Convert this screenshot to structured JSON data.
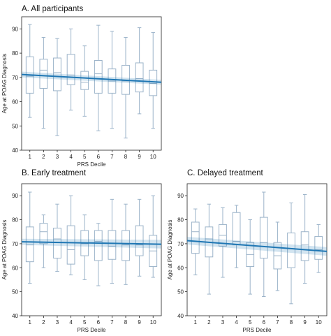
{
  "chart_data": [
    {
      "type": "box",
      "title": "A. All participants",
      "xlabel": "PRS Decile",
      "ylabel": "Age at POAG Diagnosis",
      "categories": [
        "1",
        "2",
        "3",
        "4",
        "5",
        "6",
        "7",
        "8",
        "9",
        "10"
      ],
      "ylim": [
        40,
        95
      ],
      "yticks": [
        40,
        50,
        60,
        70,
        80,
        90
      ],
      "grid": false,
      "box_color": "#9bb3c9",
      "trend_color": "#1f77b4",
      "boxes": [
        {
          "min": 53.5,
          "q1": 63.5,
          "median": 70.5,
          "q3": 78.5,
          "max": 91.8
        },
        {
          "min": 49.0,
          "q1": 65.5,
          "median": 73.0,
          "q3": 77.5,
          "max": 86.5
        },
        {
          "min": 46.0,
          "q1": 64.5,
          "median": 72.0,
          "q3": 78.0,
          "max": 86.0
        },
        {
          "min": 56.5,
          "q1": 67.0,
          "median": 71.0,
          "q3": 79.5,
          "max": 90.0
        },
        {
          "min": 54.0,
          "q1": 65.0,
          "median": 68.0,
          "q3": 72.5,
          "max": 83.0
        },
        {
          "min": 48.0,
          "q1": 63.5,
          "median": 71.5,
          "q3": 77.0,
          "max": 91.5
        },
        {
          "min": 49.0,
          "q1": 63.5,
          "median": 68.5,
          "q3": 73.5,
          "max": 89.0
        },
        {
          "min": 45.0,
          "q1": 63.0,
          "median": 68.5,
          "q3": 75.0,
          "max": 86.5
        },
        {
          "min": 55.0,
          "q1": 64.0,
          "median": 69.5,
          "q3": 76.0,
          "max": 90.5
        },
        {
          "min": 49.0,
          "q1": 62.5,
          "median": 67.5,
          "q3": 73.0,
          "max": 88.5
        }
      ],
      "trend": {
        "start": 71.2,
        "end": 68.0,
        "ci_start": 1.2,
        "ci_end": 1.0
      }
    },
    {
      "type": "box",
      "title": "B. Early treatment",
      "xlabel": "PRS Decile",
      "ylabel": "Age at POAG Diagnosis",
      "categories": [
        "1",
        "2",
        "3",
        "4",
        "5",
        "6",
        "7",
        "8",
        "9",
        "10"
      ],
      "ylim": [
        40,
        95
      ],
      "yticks": [
        40,
        50,
        60,
        70,
        80,
        90
      ],
      "grid": false,
      "box_color": "#9bb3c9",
      "trend_color": "#1f77b4",
      "boxes": [
        {
          "min": 53.5,
          "q1": 62.5,
          "median": 69.5,
          "q3": 77.0,
          "max": 91.5
        },
        {
          "min": 60.0,
          "q1": 70.0,
          "median": 75.0,
          "q3": 78.5,
          "max": 82.0
        },
        {
          "min": 58.5,
          "q1": 64.0,
          "median": 72.0,
          "q3": 76.5,
          "max": 86.5
        },
        {
          "min": 57.0,
          "q1": 61.5,
          "median": 67.5,
          "q3": 77.5,
          "max": 90.0
        },
        {
          "min": 55.0,
          "q1": 65.0,
          "median": 70.0,
          "q3": 75.5,
          "max": 82.0
        },
        {
          "min": 52.5,
          "q1": 63.0,
          "median": 71.0,
          "q3": 75.5,
          "max": 78.5
        },
        {
          "min": 53.5,
          "q1": 63.5,
          "median": 69.0,
          "q3": 75.5,
          "max": 88.5
        },
        {
          "min": 53.0,
          "q1": 63.0,
          "median": 69.5,
          "q3": 75.5,
          "max": 86.5
        },
        {
          "min": 56.5,
          "q1": 65.0,
          "median": 69.5,
          "q3": 77.5,
          "max": 88.5
        },
        {
          "min": 56.0,
          "q1": 60.5,
          "median": 67.0,
          "q3": 73.5,
          "max": 90.0
        }
      ],
      "trend": {
        "start": 70.8,
        "end": 69.8,
        "ci_start": 1.3,
        "ci_end": 1.8
      }
    },
    {
      "type": "box",
      "title": "C. Delayed treatment",
      "xlabel": "PRS Decile",
      "ylabel": "Age at POAG Diagnosis",
      "categories": [
        "1",
        "2",
        "3",
        "4",
        "5",
        "6",
        "7",
        "8",
        "9",
        "10"
      ],
      "ylim": [
        40,
        95
      ],
      "yticks": [
        40,
        50,
        60,
        70,
        80,
        90
      ],
      "grid": false,
      "box_color": "#9bb3c9",
      "trend_color": "#1f77b4",
      "boxes": [
        {
          "min": 57.0,
          "q1": 66.0,
          "median": 75.0,
          "q3": 79.0,
          "max": 84.5
        },
        {
          "min": 49.0,
          "q1": 64.5,
          "median": 72.0,
          "q3": 77.0,
          "max": 86.5
        },
        {
          "min": 56.0,
          "q1": 69.0,
          "median": 73.5,
          "q3": 78.0,
          "max": 85.0
        },
        {
          "min": 60.0,
          "q1": 69.5,
          "median": 71.0,
          "q3": 83.0,
          "max": 86.0
        },
        {
          "min": 49.0,
          "q1": 60.5,
          "median": 65.5,
          "q3": 70.5,
          "max": 80.0
        },
        {
          "min": 48.0,
          "q1": 64.0,
          "median": 70.5,
          "q3": 81.0,
          "max": 91.5
        },
        {
          "min": 50.5,
          "q1": 59.5,
          "median": 65.0,
          "q3": 70.5,
          "max": 79.0
        },
        {
          "min": 45.0,
          "q1": 60.0,
          "median": 68.0,
          "q3": 74.5,
          "max": 87.0
        },
        {
          "min": 53.5,
          "q1": 63.0,
          "median": 69.5,
          "q3": 75.0,
          "max": 90.5
        },
        {
          "min": 58.0,
          "q1": 63.5,
          "median": 67.5,
          "q3": 73.0,
          "max": 78.0
        }
      ],
      "trend": {
        "start": 71.3,
        "end": 66.8,
        "ci_start": 1.6,
        "ci_end": 1.8
      }
    }
  ]
}
